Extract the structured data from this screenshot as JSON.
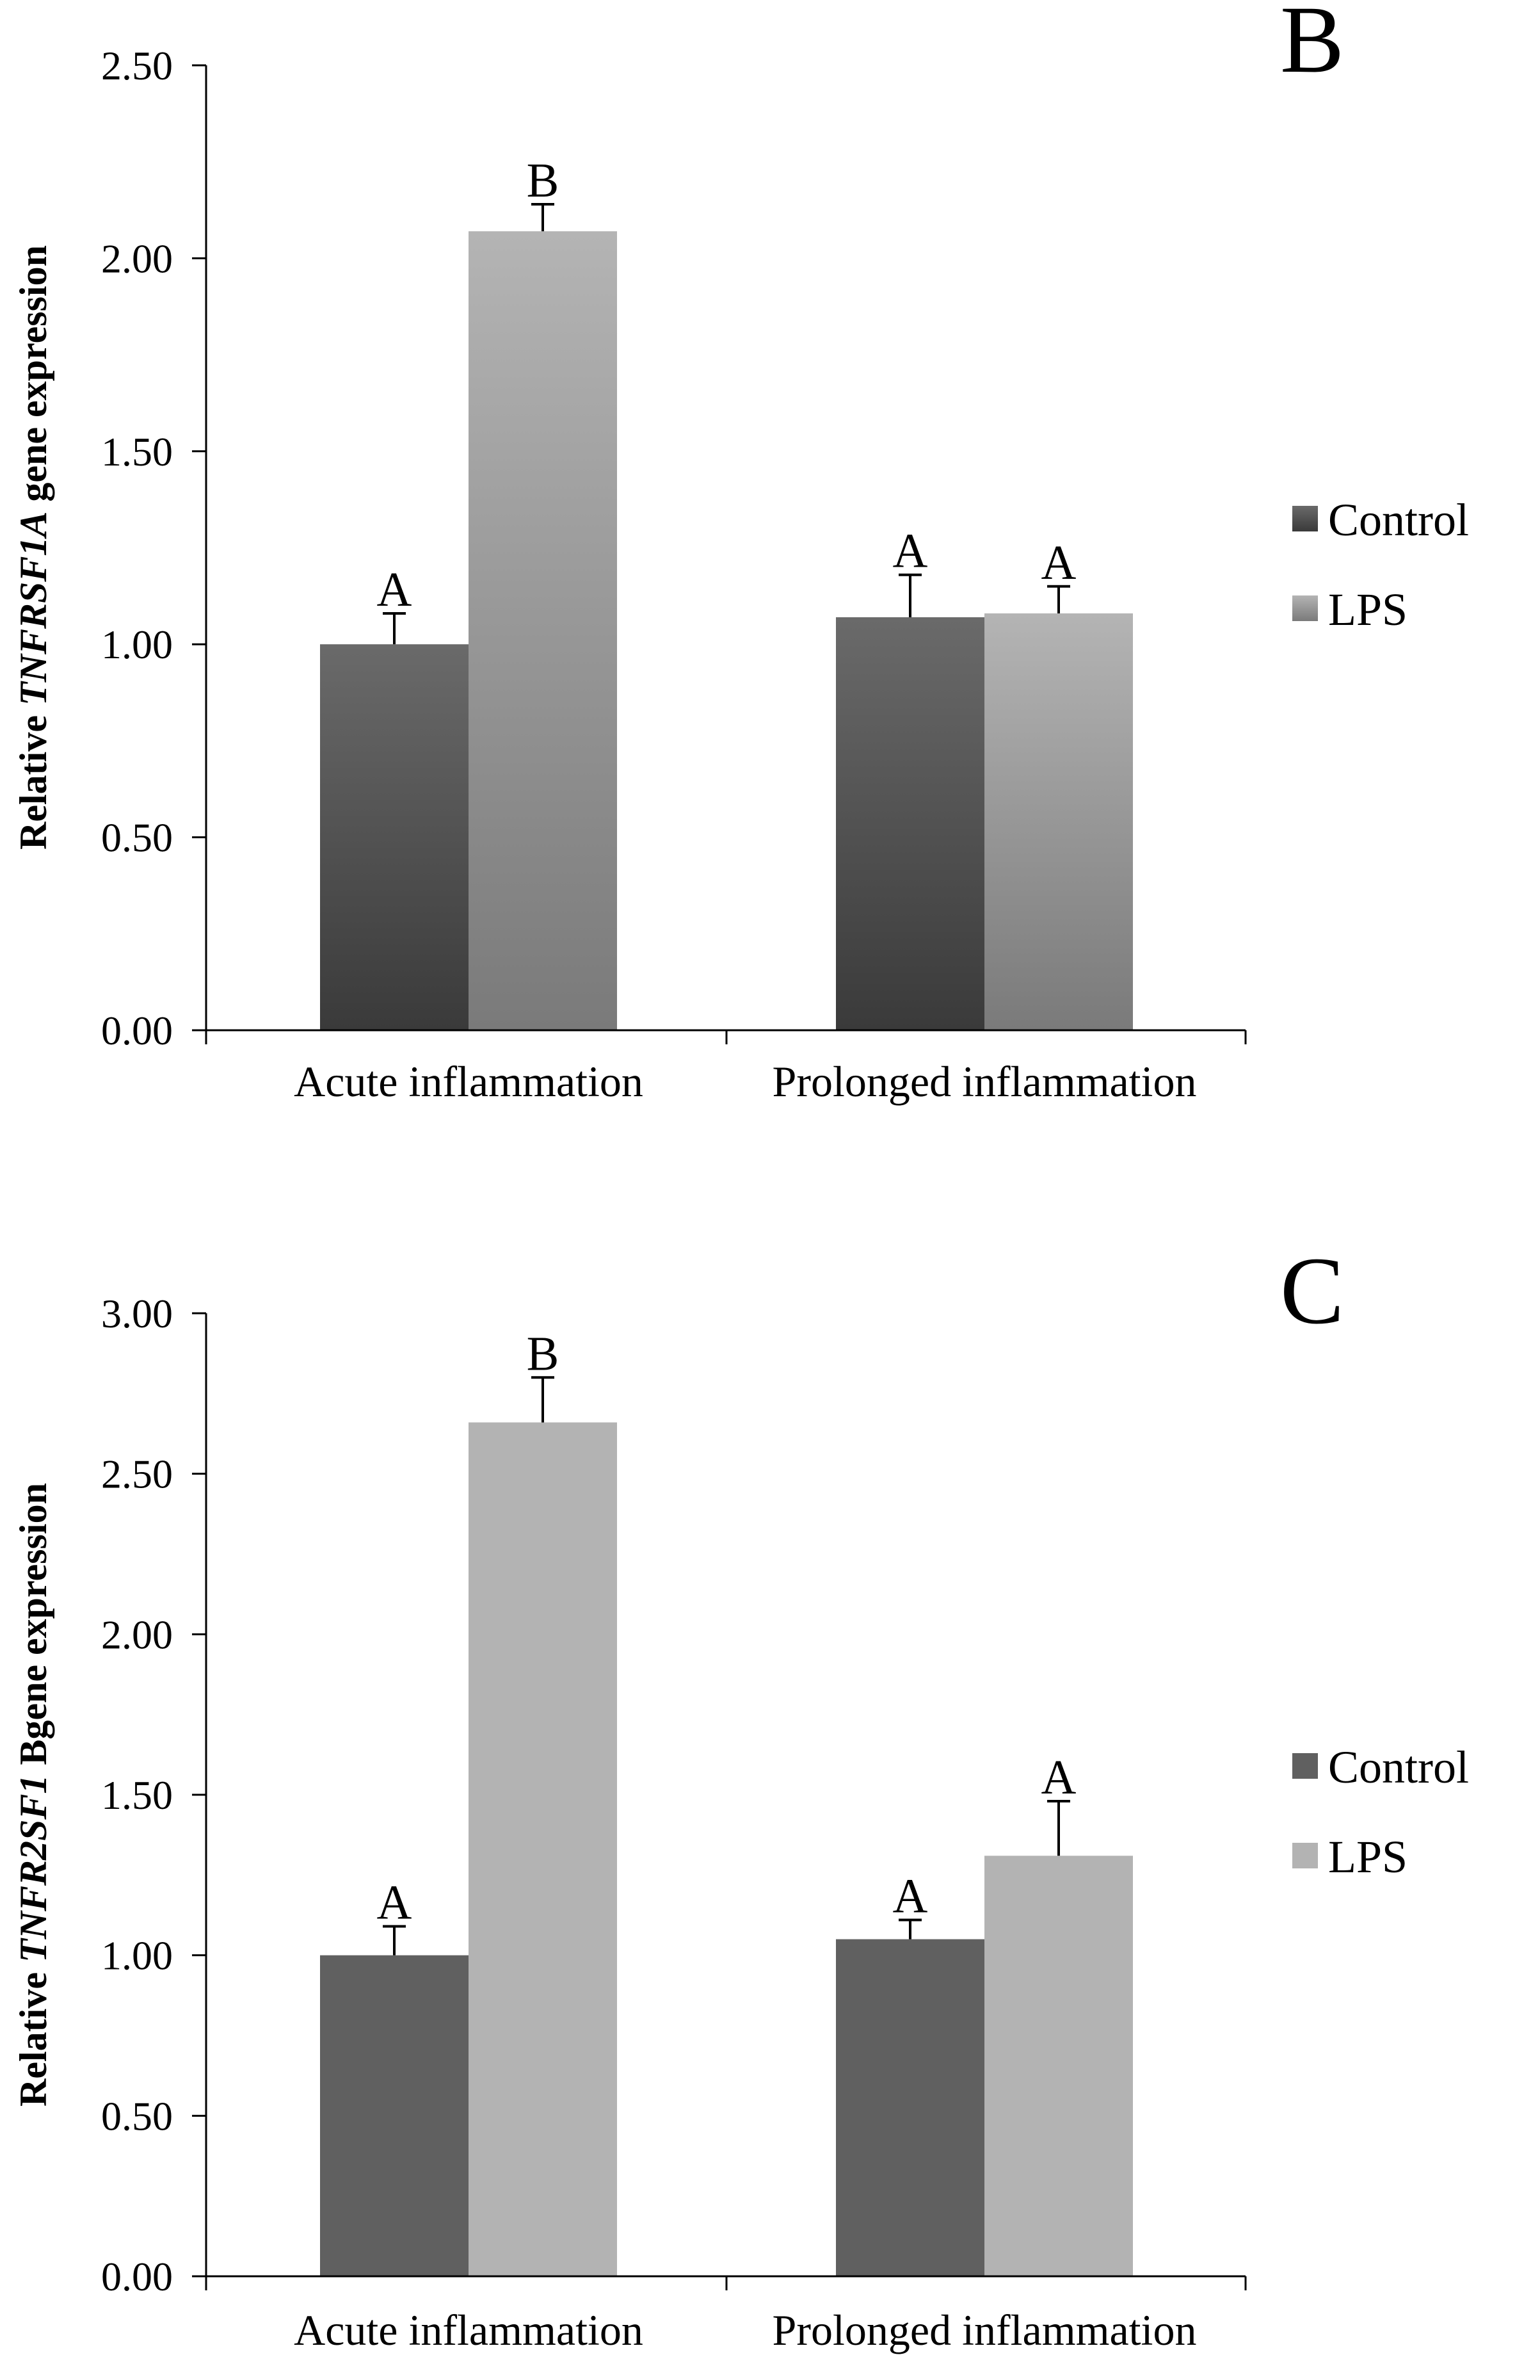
{
  "chart_data": [
    {
      "type": "bar",
      "panel_label": "B",
      "title": "",
      "ylabel_parts": [
        {
          "text": "Relative ",
          "italic": false
        },
        {
          "text": "TNFRSF1A",
          "italic": true
        },
        {
          "text": " gene expression",
          "italic": false
        }
      ],
      "xlabel": "",
      "categories": [
        "Acute inflammation",
        "Prolonged inflammation"
      ],
      "ylim": [
        0,
        2.5
      ],
      "yticks": [
        "0.00",
        "0.50",
        "1.00",
        "1.50",
        "2.00",
        "2.50"
      ],
      "series": [
        {
          "name": "Control",
          "values": [
            1.0,
            1.07
          ],
          "errors": [
            0.08,
            0.11
          ],
          "sig_labels": [
            "A",
            "A"
          ],
          "color_top": "#6a6a6a",
          "color_bottom": "#3a3a3a"
        },
        {
          "name": "LPS",
          "values": [
            2.07,
            1.08
          ],
          "errors": [
            0.07,
            0.07
          ],
          "sig_labels": [
            "B",
            "A"
          ],
          "color_top": "#b4b4b4",
          "color_bottom": "#7a7a7a"
        }
      ],
      "legend_position": "right"
    },
    {
      "type": "bar",
      "panel_label": "C",
      "title": "",
      "ylabel_parts": [
        {
          "text": "Relative ",
          "italic": false
        },
        {
          "text": "TNFR2SF1",
          "italic": true
        },
        {
          "text": " Bgene expression",
          "italic": false
        }
      ],
      "xlabel": "",
      "categories": [
        "Acute inflammation",
        "Prolonged inflammation"
      ],
      "ylim": [
        0,
        3.0
      ],
      "yticks": [
        "0.00",
        "0.50",
        "1.00",
        "1.50",
        "2.00",
        "2.50",
        "3.00"
      ],
      "series": [
        {
          "name": "Control",
          "values": [
            1.0,
            1.05
          ],
          "errors": [
            0.09,
            0.06
          ],
          "sig_labels": [
            "A",
            "A"
          ],
          "color_top": "#606060",
          "color_bottom": "#606060"
        },
        {
          "name": "LPS",
          "values": [
            2.66,
            1.31
          ],
          "errors": [
            0.14,
            0.17
          ],
          "sig_labels": [
            "B",
            "A"
          ],
          "color_top": "#b3b3b3",
          "color_bottom": "#b3b3b3"
        }
      ],
      "legend_position": "right"
    }
  ]
}
